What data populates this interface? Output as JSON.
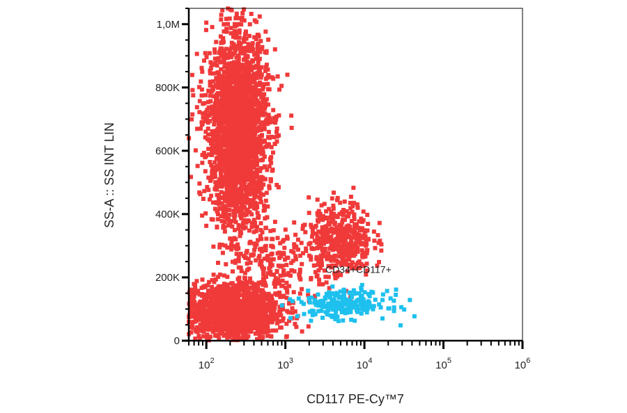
{
  "chart_data": {
    "type": "scatter",
    "title": "",
    "xlabel": "CD117  PE-Cy™7",
    "ylabel": "SS-A :: SS INT LIN",
    "x_scale": "log",
    "xlim": [
      60,
      1000000
    ],
    "ylim": [
      0,
      1050000
    ],
    "x_tick_labels": [
      {
        "value": 100,
        "base": "10",
        "exp": "2"
      },
      {
        "value": 1000,
        "base": "10",
        "exp": "3"
      },
      {
        "value": 10000,
        "base": "10",
        "exp": "4"
      },
      {
        "value": 100000,
        "base": "10",
        "exp": "5"
      },
      {
        "value": 1000000,
        "base": "10",
        "exp": "6"
      }
    ],
    "y_ticks": [
      {
        "value": 0,
        "label": "0"
      },
      {
        "value": 200000,
        "label": "200K"
      },
      {
        "value": 400000,
        "label": "400K"
      },
      {
        "value": 600000,
        "label": "600K"
      },
      {
        "value": 800000,
        "label": "800K"
      },
      {
        "value": 1000000,
        "label": "1,0M"
      }
    ],
    "grid": false,
    "annotations": [
      {
        "text": "CD34+CD117+",
        "x": 8000,
        "y": 225000
      }
    ],
    "series": [
      {
        "color": "#f03a3a",
        "populations": [
          {
            "x_center": 250,
            "x_log_sd": 0.19,
            "y_center": 660000,
            "y_sd": 150000,
            "count": 2600
          },
          {
            "x_center": 200,
            "x_log_sd": 0.3,
            "y_center": 90000,
            "y_sd": 45000,
            "count": 1500
          },
          {
            "x_center": 5000,
            "x_log_sd": 0.2,
            "y_center": 320000,
            "y_sd": 60000,
            "count": 450
          },
          {
            "x_center": 700,
            "x_log_sd": 0.3,
            "y_center": 230000,
            "y_sd": 70000,
            "count": 200
          }
        ]
      },
      {
        "name": "CD34+CD117+",
        "color": "#1ec0ee",
        "populations": [
          {
            "x_center": 5500,
            "x_log_sd": 0.28,
            "y_center": 115000,
            "y_sd": 22000,
            "count": 230
          }
        ]
      }
    ]
  }
}
